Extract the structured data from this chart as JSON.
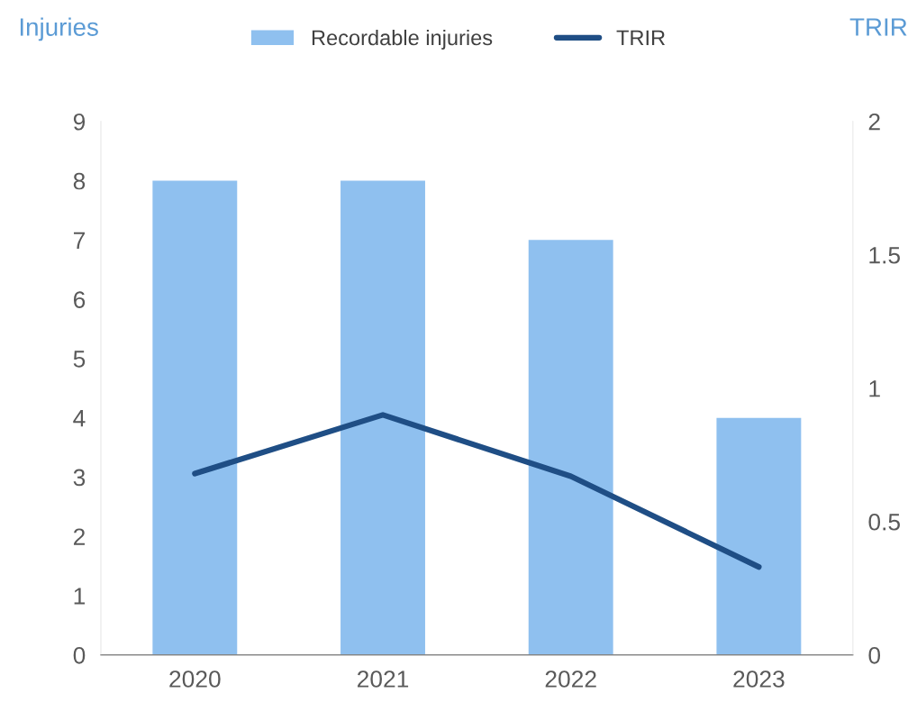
{
  "chart_data": {
    "type": "bar",
    "categories": [
      "2020",
      "2021",
      "2022",
      "2023"
    ],
    "ylabel": "Injuries",
    "y2label": "TRIR",
    "series": [
      {
        "name": "Recordable injuries",
        "color": "#8fc0ef",
        "values": [
          8,
          8,
          7,
          4
        ]
      },
      {
        "name": "TRIR",
        "type": "line",
        "axis": "y2",
        "color": "#1f4e85",
        "values": [
          0.68,
          0.9,
          0.67,
          0.33
        ]
      }
    ],
    "ylim": [
      0,
      9
    ],
    "yticks": [
      0,
      1,
      2,
      3,
      4,
      5,
      6,
      7,
      8,
      9
    ],
    "y2lim": [
      0,
      2
    ],
    "y2ticks": [
      0,
      0.5,
      1,
      1.5,
      2
    ],
    "legend": "top",
    "grid": false,
    "marker": "none",
    "line_style": "solid"
  }
}
